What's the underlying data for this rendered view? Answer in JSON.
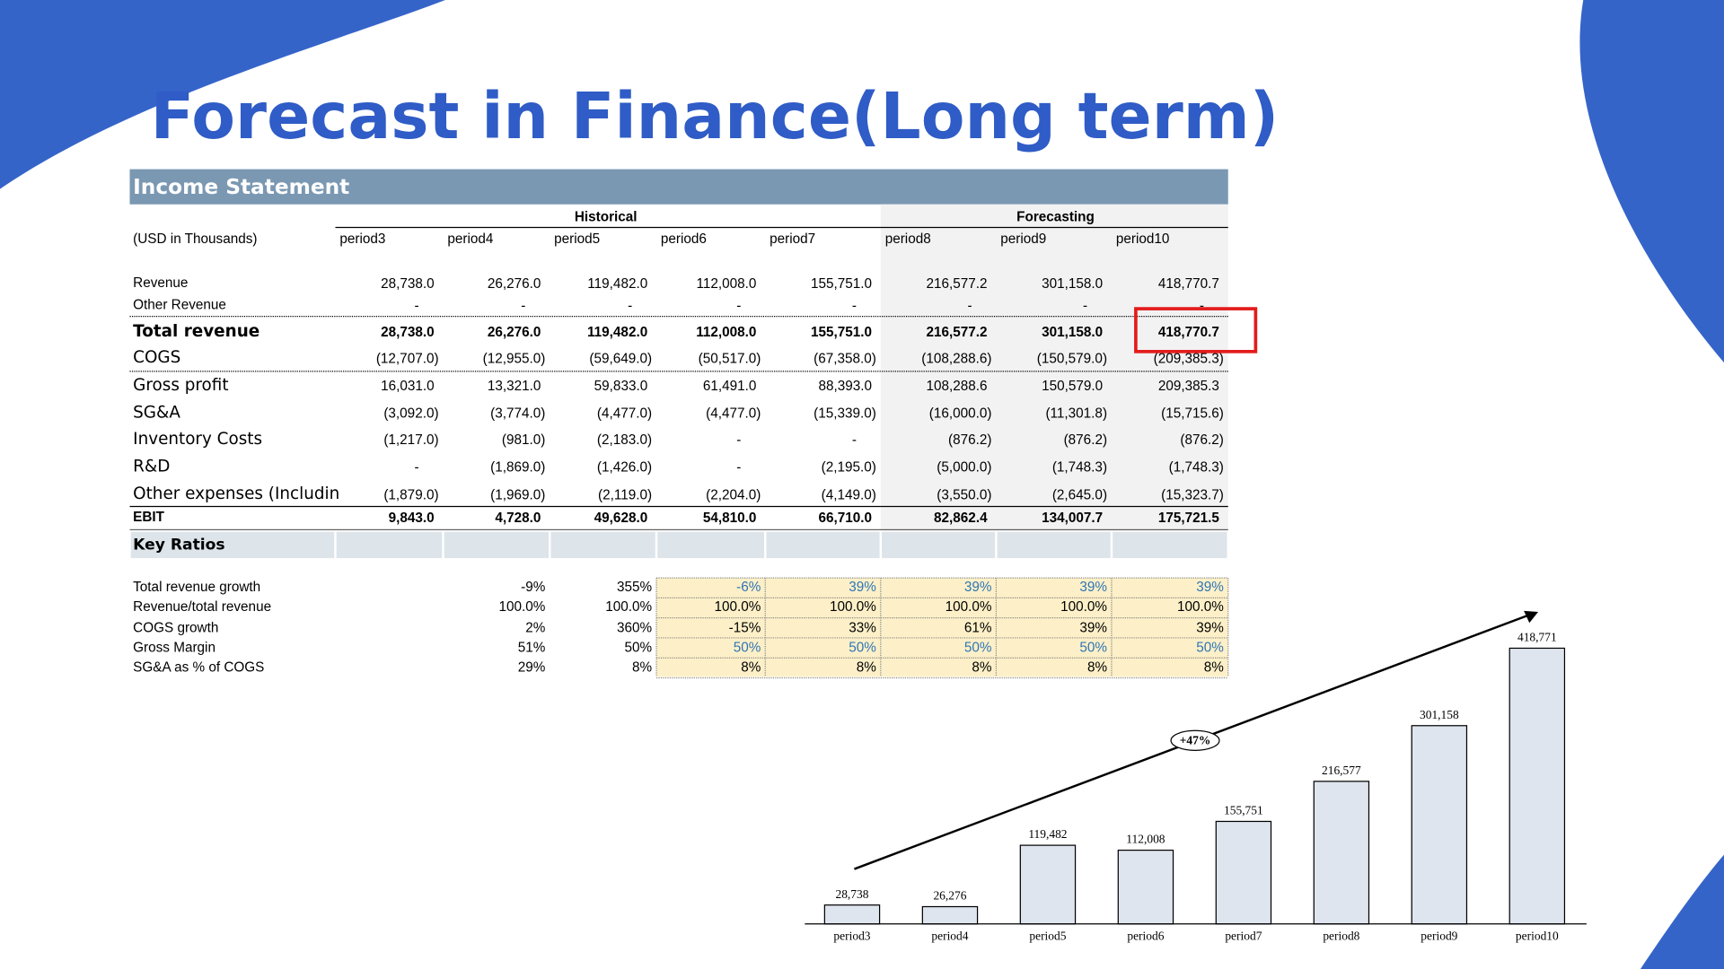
{
  "title": "Forecast in Finance(Long term)",
  "table": {
    "title": "Income Statement",
    "groups": [
      "Historical",
      "Forecasting"
    ],
    "unit": "(USD in Thousands)",
    "columns": [
      "period3",
      "period4",
      "period5",
      "period6",
      "period7",
      "period8",
      "period9",
      "period10"
    ],
    "rows": [
      {
        "label": "Revenue",
        "values": [
          "28,738.0",
          "26,276.0",
          "119,482.0",
          "112,008.0",
          "155,751.0",
          "216,577.2",
          "301,158.0",
          "418,770.7"
        ]
      },
      {
        "label": "Other Revenue",
        "values": [
          "-",
          "-",
          "-",
          "-",
          "-",
          "-",
          "-",
          "-"
        ]
      },
      {
        "label": "Total revenue",
        "values": [
          "28,738.0",
          "26,276.0",
          "119,482.0",
          "112,008.0",
          "155,751.0",
          "216,577.2",
          "301,158.0",
          "418,770.7"
        ]
      },
      {
        "label": "COGS",
        "values": [
          "(12,707.0)",
          "(12,955.0)",
          "(59,649.0)",
          "(50,517.0)",
          "(67,358.0)",
          "(108,288.6)",
          "(150,579.0)",
          "(209,385.3)"
        ]
      },
      {
        "label": "Gross profit",
        "values": [
          "16,031.0",
          "13,321.0",
          "59,833.0",
          "61,491.0",
          "88,393.0",
          "108,288.6",
          "150,579.0",
          "209,385.3"
        ]
      },
      {
        "label": "SG&A",
        "values": [
          "(3,092.0)",
          "(3,774.0)",
          "(4,477.0)",
          "(4,477.0)",
          "(15,339.0)",
          "(16,000.0)",
          "(11,301.8)",
          "(15,715.6)"
        ]
      },
      {
        "label": "Inventory Costs",
        "values": [
          "(1,217.0)",
          "(981.0)",
          "(2,183.0)",
          "-",
          "-",
          "(876.2)",
          "(876.2)",
          "(876.2)"
        ]
      },
      {
        "label": "R&D",
        "values": [
          "-",
          "(1,869.0)",
          "(1,426.0)",
          "-",
          "(2,195.0)",
          "(5,000.0)",
          "(1,748.3)",
          "(1,748.3)"
        ]
      },
      {
        "label": "Other expenses (Includin",
        "values": [
          "(1,879.0)",
          "(1,969.0)",
          "(2,119.0)",
          "(2,204.0)",
          "(4,149.0)",
          "(3,550.0)",
          "(2,645.0)",
          "(15,323.7)"
        ]
      },
      {
        "label": "EBIT",
        "values": [
          "9,843.0",
          "4,728.0",
          "49,628.0",
          "54,810.0",
          "66,710.0",
          "82,862.4",
          "134,007.7",
          "175,721.5"
        ]
      }
    ]
  },
  "ratios": {
    "title": "Key Ratios",
    "rows": [
      {
        "label": "Total revenue growth",
        "values": [
          "-9%",
          "355%",
          "-6%",
          "39%",
          "39%",
          "39%",
          "39%"
        ]
      },
      {
        "label": "Revenue/total revenue",
        "values": [
          "100.0%",
          "100.0%",
          "100.0%",
          "100.0%",
          "100.0%",
          "100.0%",
          "100.0%"
        ]
      },
      {
        "label": "COGS growth",
        "values": [
          "2%",
          "360%",
          "-15%",
          "33%",
          "61%",
          "39%",
          "39%"
        ]
      },
      {
        "label": "Gross Margin",
        "values": [
          "51%",
          "50%",
          "50%",
          "50%",
          "50%",
          "50%",
          "50%"
        ]
      },
      {
        "label": "SG&A as % of COGS",
        "values": [
          "29%",
          "8%",
          "8%",
          "8%",
          "8%",
          "8%",
          "8%"
        ]
      }
    ]
  },
  "chart_data": {
    "type": "bar",
    "categories": [
      "period3",
      "period4",
      "period5",
      "period6",
      "period7",
      "period8",
      "period9",
      "period10"
    ],
    "values": [
      28738,
      26276,
      119482,
      112008,
      155751,
      216577,
      301158,
      418771
    ],
    "value_labels": [
      "28,738",
      "26,276",
      "119,482",
      "112,008",
      "155,751",
      "216,577",
      "301,158",
      "418,771"
    ],
    "color": "#dfe5ef",
    "annotation": "+47%"
  }
}
